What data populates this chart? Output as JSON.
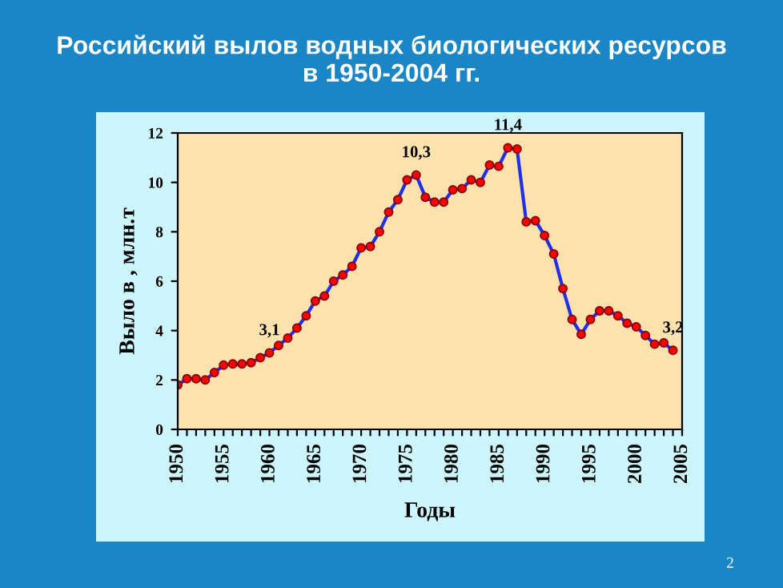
{
  "chart_data": {
    "type": "line",
    "title": "Российский вылов водных биологических ресурсов\nв 1950-2004 гг.",
    "xlabel": "Годы",
    "ylabel": "Выло в , млн.т",
    "x": [
      1950,
      1951,
      1952,
      1953,
      1954,
      1955,
      1956,
      1957,
      1958,
      1959,
      1960,
      1961,
      1962,
      1963,
      1964,
      1965,
      1966,
      1967,
      1968,
      1969,
      1970,
      1971,
      1972,
      1973,
      1974,
      1975,
      1976,
      1977,
      1978,
      1979,
      1980,
      1981,
      1982,
      1983,
      1984,
      1985,
      1986,
      1987,
      1988,
      1989,
      1990,
      1991,
      1992,
      1993,
      1994,
      1995,
      1996,
      1997,
      1998,
      1999,
      2000,
      2001,
      2002,
      2003,
      2004
    ],
    "series": [
      {
        "color": "#1f2ff0",
        "values": [
          1.8,
          2.05,
          2.05,
          2.0,
          2.3,
          2.6,
          2.65,
          2.65,
          2.7,
          2.9,
          3.1,
          3.4,
          3.7,
          4.1,
          4.6,
          5.2,
          5.4,
          6.0,
          6.25,
          6.6,
          7.35,
          7.4,
          8.0,
          8.8,
          9.3,
          10.1,
          10.3,
          9.4,
          9.2,
          9.2,
          9.7,
          9.75,
          10.1,
          10.0,
          10.7,
          10.65,
          11.4,
          11.35,
          8.4,
          8.45,
          7.85,
          7.1,
          5.7,
          4.45,
          3.85,
          4.45,
          4.8,
          4.8,
          4.6,
          4.3,
          4.15,
          3.8,
          3.45,
          3.5,
          3.2
        ]
      }
    ],
    "marker": "circle",
    "line_style": "solid",
    "grid": false,
    "legend": false,
    "xlim": [
      1950,
      2005
    ],
    "xticks": [
      1950,
      {
        "value": 1951,
        "label": null
      },
      {
        "value": 1952,
        "label": null
      },
      {
        "value": 1953,
        "label": null
      },
      {
        "value": 1954,
        "label": null
      },
      1955,
      {
        "value": 1956,
        "label": null
      },
      {
        "value": 1957,
        "label": null
      },
      {
        "value": 1958,
        "label": null
      },
      {
        "value": 1959,
        "label": null
      },
      1960,
      {
        "value": 1961,
        "label": null
      },
      {
        "value": 1962,
        "label": null
      },
      {
        "value": 1963,
        "label": null
      },
      {
        "value": 1964,
        "label": null
      },
      1965,
      {
        "value": 1966,
        "label": null
      },
      {
        "value": 1967,
        "label": null
      },
      {
        "value": 1968,
        "label": null
      },
      {
        "value": 1969,
        "label": null
      },
      1970,
      {
        "value": 1971,
        "label": null
      },
      {
        "value": 1972,
        "label": null
      },
      {
        "value": 1973,
        "label": null
      },
      {
        "value": 1974,
        "label": null
      },
      1975,
      {
        "value": 1976,
        "label": null
      },
      {
        "value": 1977,
        "label": null
      },
      {
        "value": 1978,
        "label": null
      },
      {
        "value": 1979,
        "label": null
      },
      1980,
      {
        "value": 1981,
        "label": null
      },
      {
        "value": 1982,
        "label": null
      },
      {
        "value": 1983,
        "label": null
      },
      {
        "value": 1984,
        "label": null
      },
      1985,
      {
        "value": 1986,
        "label": null
      },
      {
        "value": 1987,
        "label": null
      },
      {
        "value": 1988,
        "label": null
      },
      {
        "value": 1989,
        "label": null
      },
      1990,
      {
        "value": 1991,
        "label": null
      },
      {
        "value": 1992,
        "label": null
      },
      {
        "value": 1993,
        "label": null
      },
      {
        "value": 1994,
        "label": null
      },
      1995,
      {
        "value": 1996,
        "label": null
      },
      {
        "value": 1997,
        "label": null
      },
      {
        "value": 1998,
        "label": null
      },
      {
        "value": 1999,
        "label": null
      },
      2000,
      {
        "value": 2001,
        "label": null
      },
      {
        "value": 2002,
        "label": null
      },
      {
        "value": 2003,
        "label": null
      },
      {
        "value": 2004,
        "label": null
      },
      2005
    ],
    "ylim": [
      0,
      12
    ],
    "yticks": [
      0,
      2,
      4,
      6,
      8,
      10,
      12
    ],
    "annotations": [
      {
        "text": "3,1",
        "x": 1960,
        "y": 3.1
      },
      {
        "text": "10,3",
        "x": 1976,
        "y": 10.3
      },
      {
        "text": "11,4",
        "x": 1986,
        "y": 11.4
      },
      {
        "text": "3,2",
        "x": 2004,
        "y": 3.2
      },
      "2"
    ]
  }
}
